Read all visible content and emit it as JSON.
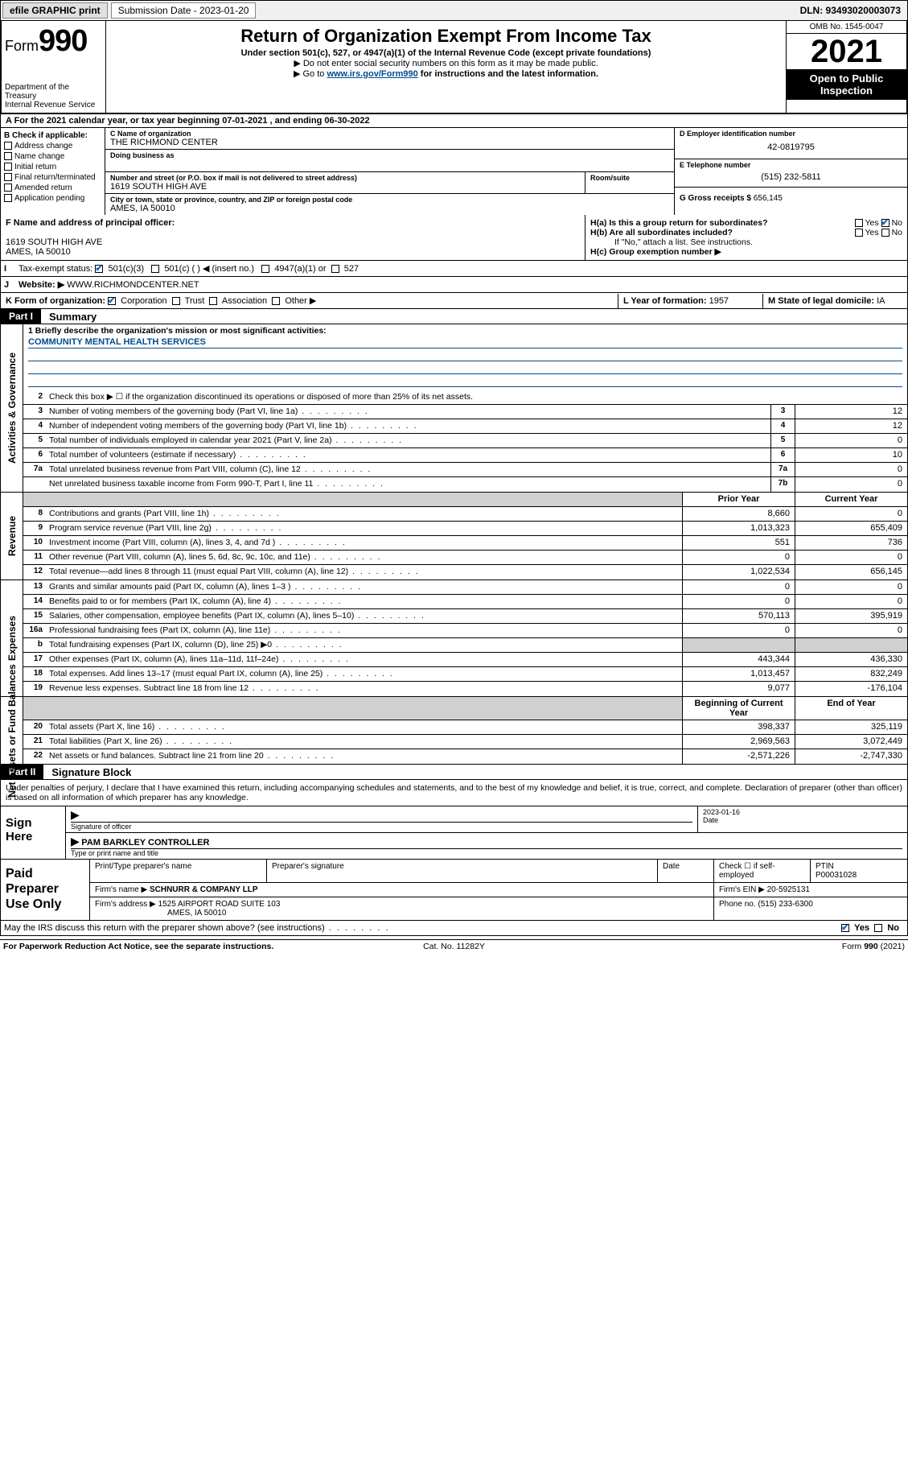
{
  "topbar": {
    "efile": "efile GRAPHIC print",
    "submission_label": "Submission Date - 2023-01-20",
    "dln": "DLN: 93493020003073"
  },
  "header": {
    "form_word": "Form",
    "form_num": "990",
    "dept": "Department of the Treasury",
    "irs": "Internal Revenue Service",
    "title": "Return of Organization Exempt From Income Tax",
    "sub1": "Under section 501(c), 527, or 4947(a)(1) of the Internal Revenue Code (except private foundations)",
    "sub2": "▶ Do not enter social security numbers on this form as it may be made public.",
    "sub3a": "▶ Go to ",
    "sub3link": "www.irs.gov/Form990",
    "sub3b": " for instructions and the latest information.",
    "omb": "OMB No. 1545-0047",
    "year": "2021",
    "open": "Open to Public Inspection"
  },
  "rowA": "A For the 2021 calendar year, or tax year beginning 07-01-2021   , and ending 06-30-2022",
  "B": {
    "hd": "B Check if applicable:",
    "opts": [
      "Address change",
      "Name change",
      "Initial return",
      "Final return/terminated",
      "Amended return",
      "Application pending"
    ]
  },
  "C": {
    "name_lbl": "C Name of organization",
    "name": "THE RICHMOND CENTER",
    "dba_lbl": "Doing business as",
    "dba": "",
    "addr_lbl": "Number and street (or P.O. box if mail is not delivered to street address)",
    "room_lbl": "Room/suite",
    "addr": "1619 SOUTH HIGH AVE",
    "city_lbl": "City or town, state or province, country, and ZIP or foreign postal code",
    "city": "AMES, IA  50010"
  },
  "D": {
    "lbl": "D Employer identification number",
    "val": "42-0819795"
  },
  "E": {
    "lbl": "E Telephone number",
    "val": "(515) 232-5811"
  },
  "G": {
    "lbl": "G Gross receipts $",
    "val": "656,145"
  },
  "F": {
    "lbl": "F Name and address of principal officer:",
    "addr1": "1619 SOUTH HIGH AVE",
    "addr2": "AMES, IA  50010"
  },
  "H": {
    "a": "H(a)  Is this a group return for subordinates?",
    "b": "H(b)  Are all subordinates included?",
    "note": "If \"No,\" attach a list. See instructions.",
    "c": "H(c)  Group exemption number ▶",
    "yes": "Yes",
    "no": "No"
  },
  "I": {
    "lbl": "Tax-exempt status:",
    "o1": "501(c)(3)",
    "o2": "501(c) (   ) ◀ (insert no.)",
    "o3": "4947(a)(1) or",
    "o4": "527"
  },
  "J": {
    "lbl": "Website: ▶",
    "val": "WWW.RICHMONDCENTER.NET"
  },
  "K": {
    "lbl": "K Form of organization:",
    "o1": "Corporation",
    "o2": "Trust",
    "o3": "Association",
    "o4": "Other ▶"
  },
  "L": {
    "lbl": "L Year of formation:",
    "val": "1957"
  },
  "M": {
    "lbl": "M State of legal domicile:",
    "val": "IA"
  },
  "part1": {
    "tag": "Part I",
    "title": "Summary"
  },
  "mission": {
    "q": "1  Briefly describe the organization's mission or most significant activities:",
    "val": "COMMUNITY MENTAL HEALTH SERVICES"
  },
  "gov": {
    "vlabel": "Activities & Governance",
    "l2": "Check this box ▶ ☐  if the organization discontinued its operations or disposed of more than 25% of its net assets.",
    "rows": [
      {
        "n": "3",
        "d": "Number of voting members of the governing body (Part VI, line 1a)",
        "box": "3",
        "v": "12"
      },
      {
        "n": "4",
        "d": "Number of independent voting members of the governing body (Part VI, line 1b)",
        "box": "4",
        "v": "12"
      },
      {
        "n": "5",
        "d": "Total number of individuals employed in calendar year 2021 (Part V, line 2a)",
        "box": "5",
        "v": "0"
      },
      {
        "n": "6",
        "d": "Total number of volunteers (estimate if necessary)",
        "box": "6",
        "v": "10"
      },
      {
        "n": "7a",
        "d": "Total unrelated business revenue from Part VIII, column (C), line 12",
        "box": "7a",
        "v": "0"
      },
      {
        "n": "",
        "d": "Net unrelated business taxable income from Form 990-T, Part I, line 11",
        "box": "7b",
        "v": "0"
      }
    ]
  },
  "rev": {
    "vlabel": "Revenue",
    "hdr_prior": "Prior Year",
    "hdr_curr": "Current Year",
    "rows": [
      {
        "n": "8",
        "d": "Contributions and grants (Part VIII, line 1h)",
        "p": "8,660",
        "c": "0"
      },
      {
        "n": "9",
        "d": "Program service revenue (Part VIII, line 2g)",
        "p": "1,013,323",
        "c": "655,409"
      },
      {
        "n": "10",
        "d": "Investment income (Part VIII, column (A), lines 3, 4, and 7d )",
        "p": "551",
        "c": "736"
      },
      {
        "n": "11",
        "d": "Other revenue (Part VIII, column (A), lines 5, 6d, 8c, 9c, 10c, and 11e)",
        "p": "0",
        "c": "0"
      },
      {
        "n": "12",
        "d": "Total revenue—add lines 8 through 11 (must equal Part VIII, column (A), line 12)",
        "p": "1,022,534",
        "c": "656,145"
      }
    ]
  },
  "exp": {
    "vlabel": "Expenses",
    "rows": [
      {
        "n": "13",
        "d": "Grants and similar amounts paid (Part IX, column (A), lines 1–3 )",
        "p": "0",
        "c": "0"
      },
      {
        "n": "14",
        "d": "Benefits paid to or for members (Part IX, column (A), line 4)",
        "p": "0",
        "c": "0"
      },
      {
        "n": "15",
        "d": "Salaries, other compensation, employee benefits (Part IX, column (A), lines 5–10)",
        "p": "570,113",
        "c": "395,919"
      },
      {
        "n": "16a",
        "d": "Professional fundraising fees (Part IX, column (A), line 11e)",
        "p": "0",
        "c": "0"
      },
      {
        "n": "b",
        "d": "Total fundraising expenses (Part IX, column (D), line 25) ▶0",
        "p": "",
        "c": "",
        "shade": true
      },
      {
        "n": "17",
        "d": "Other expenses (Part IX, column (A), lines 11a–11d, 11f–24e)",
        "p": "443,344",
        "c": "436,330"
      },
      {
        "n": "18",
        "d": "Total expenses. Add lines 13–17 (must equal Part IX, column (A), line 25)",
        "p": "1,013,457",
        "c": "832,249"
      },
      {
        "n": "19",
        "d": "Revenue less expenses. Subtract line 18 from line 12",
        "p": "9,077",
        "c": "-176,104"
      }
    ]
  },
  "net": {
    "vlabel": "Net Assets or Fund Balances",
    "hdr_beg": "Beginning of Current Year",
    "hdr_end": "End of Year",
    "rows": [
      {
        "n": "20",
        "d": "Total assets (Part X, line 16)",
        "p": "398,337",
        "c": "325,119"
      },
      {
        "n": "21",
        "d": "Total liabilities (Part X, line 26)",
        "p": "2,969,563",
        "c": "3,072,449"
      },
      {
        "n": "22",
        "d": "Net assets or fund balances. Subtract line 21 from line 20",
        "p": "-2,571,226",
        "c": "-2,747,330"
      }
    ]
  },
  "part2": {
    "tag": "Part II",
    "title": "Signature Block"
  },
  "sig": {
    "decl": "Under penalties of perjury, I declare that I have examined this return, including accompanying schedules and statements, and to the best of my knowledge and belief, it is true, correct, and complete. Declaration of preparer (other than officer) is based on all information of which preparer has any knowledge.",
    "sign_here": "Sign Here",
    "sig_lbl": "Signature of officer",
    "date_lbl": "Date",
    "date": "2023-01-16",
    "name": "PAM BARKLEY CONTROLLER",
    "name_lbl": "Type or print name and title"
  },
  "paid": {
    "title": "Paid Preparer Use Only",
    "h_print": "Print/Type preparer's name",
    "h_sig": "Preparer's signature",
    "h_date": "Date",
    "h_check": "Check ☐ if self-employed",
    "h_ptin": "PTIN",
    "ptin": "P00031028",
    "firm_lbl": "Firm's name    ▶",
    "firm": "SCHNURR & COMPANY LLP",
    "ein_lbl": "Firm's EIN ▶",
    "ein": "20-5925131",
    "addr_lbl": "Firm's address ▶",
    "addr1": "1525 AIRPORT ROAD SUITE 103",
    "addr2": "AMES, IA  50010",
    "phone_lbl": "Phone no.",
    "phone": "(515) 233-6300"
  },
  "may": {
    "q": "May the IRS discuss this return with the preparer shown above? (see instructions)",
    "yes": "Yes",
    "no": "No"
  },
  "footer": {
    "l": "For Paperwork Reduction Act Notice, see the separate instructions.",
    "c": "Cat. No. 11282Y",
    "r": "Form 990 (2021)"
  }
}
